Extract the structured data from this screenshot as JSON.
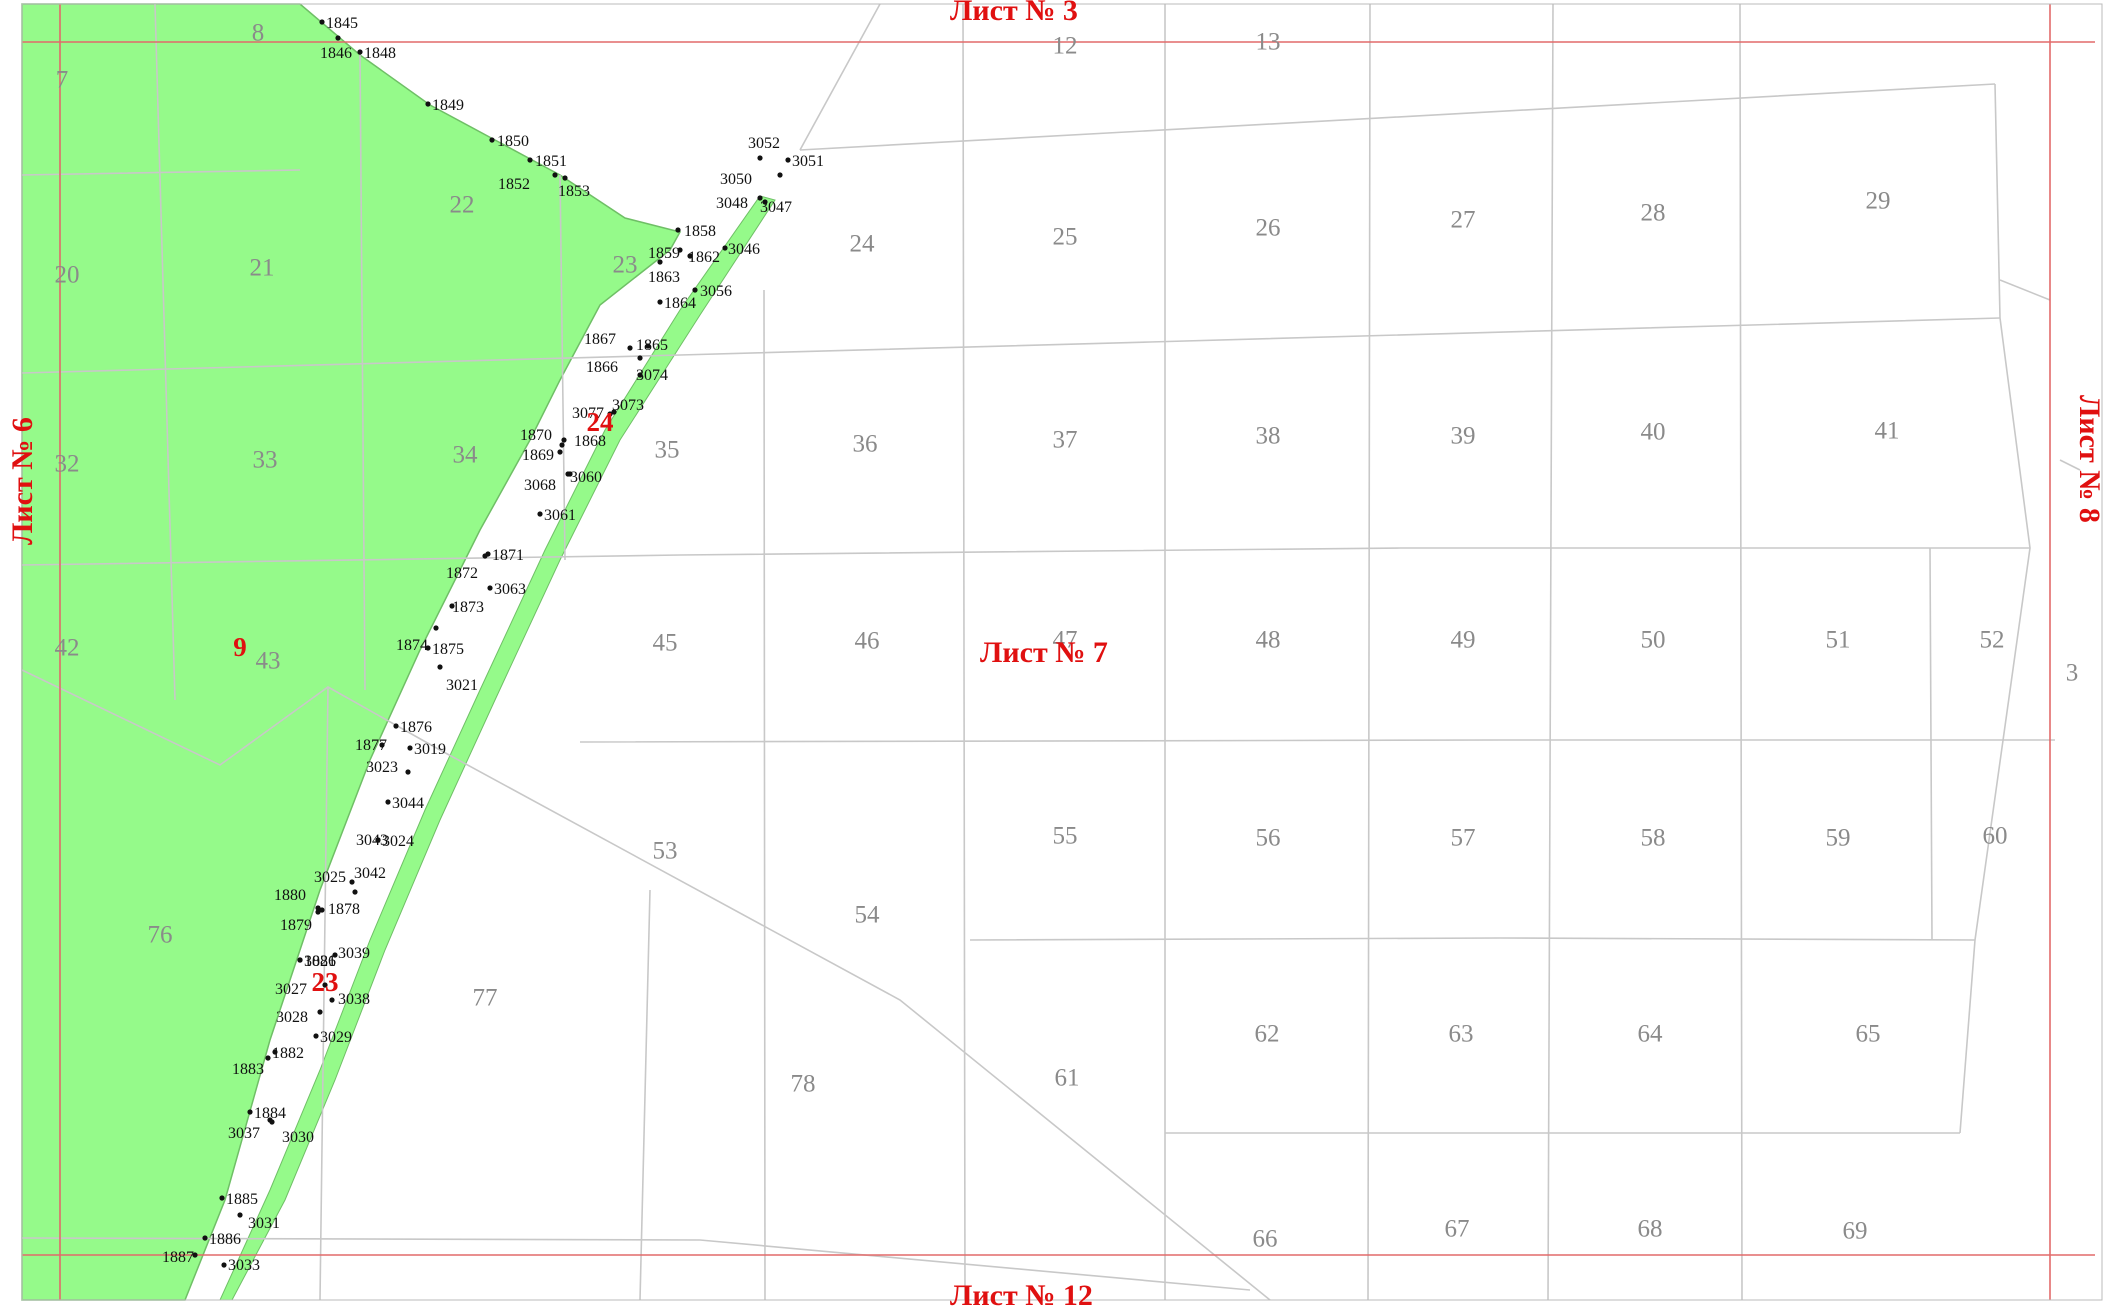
{
  "colors": {
    "forest": "#95fa8a",
    "forest_line": "#6fbf66",
    "grid": "#c8c8c8",
    "sheet_grid": "#e26a6a",
    "label_red": "#e01010",
    "plot_number": "#8a8a8a",
    "point": "#111111"
  },
  "sheets": {
    "center": "Лист № 7",
    "top": "Лист № 3",
    "bottom": "Лист № 12",
    "left": "Лист № 6",
    "right": "Лист № 8"
  },
  "highlight_numbers": {
    "zone_9": "9",
    "zone_24": "24",
    "zone_23": "23"
  },
  "plots": [
    "7",
    "8",
    "12",
    "13",
    "20",
    "21",
    "22",
    "23",
    "24",
    "25",
    "26",
    "27",
    "28",
    "29",
    "32",
    "33",
    "34",
    "35",
    "36",
    "37",
    "38",
    "39",
    "40",
    "41",
    "42",
    "43",
    "45",
    "46",
    "47",
    "48",
    "49",
    "50",
    "51",
    "52",
    "3",
    "53",
    "54",
    "55",
    "56",
    "57",
    "58",
    "59",
    "60",
    "61",
    "62",
    "63",
    "64",
    "65",
    "66",
    "67",
    "68",
    "69",
    "76",
    "77",
    "78"
  ],
  "points": [
    "1845",
    "1846",
    "1848",
    "1849",
    "1850",
    "1851",
    "1852",
    "1853",
    "3052",
    "3051",
    "3050",
    "3048",
    "3047",
    "1858",
    "1859",
    "1862",
    "3046",
    "1863",
    "1864",
    "3056",
    "1867",
    "1865",
    "1866",
    "3074",
    "3077",
    "3073",
    "1870",
    "1868",
    "1869",
    "3068",
    "3060",
    "3061",
    "1871",
    "1872",
    "3063",
    "1873",
    "1874",
    "1875",
    "3021",
    "1876",
    "1877",
    "3019",
    "3023",
    "3044",
    "3043",
    "3024",
    "3025",
    "3042",
    "1880",
    "1878",
    "1879",
    "1881",
    "3026",
    "3039",
    "3027",
    "3038",
    "3028",
    "3029",
    "1882",
    "1883",
    "1884",
    "3037",
    "3030",
    "1885",
    "3031",
    "1886",
    "1887",
    "3033"
  ]
}
